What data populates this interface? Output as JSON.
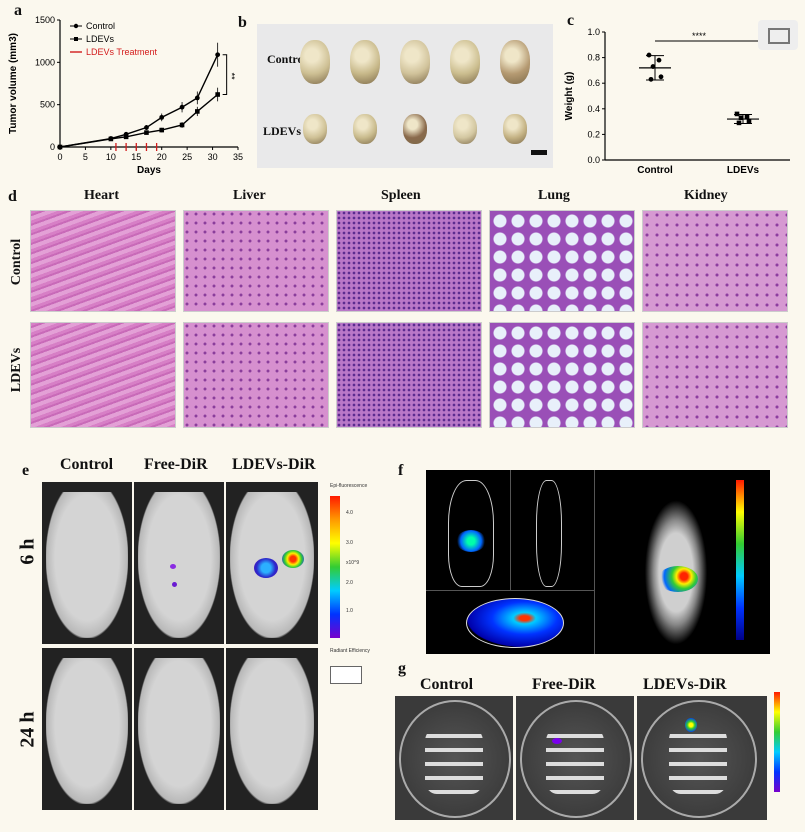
{
  "panels": {
    "a": "a",
    "b": "b",
    "c": "c",
    "d": "d",
    "e": "e",
    "f": "f",
    "g": "g"
  },
  "chart_data": [
    {
      "type": "line",
      "xlabel": "Days",
      "ylabel": "Tumor volume (mm3)",
      "xlim": [
        0,
        35
      ],
      "ylim": [
        0,
        1500
      ],
      "xticks": [
        "0",
        "5",
        "10",
        "15",
        "20",
        "25",
        "30",
        "35"
      ],
      "yticks": [
        "0",
        "500",
        "1000",
        "1500"
      ],
      "x": [
        0,
        10,
        13,
        17,
        20,
        24,
        27,
        31
      ],
      "series": [
        {
          "name": "Control",
          "values": [
            0,
            100,
            150,
            230,
            350,
            470,
            580,
            1090
          ]
        },
        {
          "name": "LDEVs",
          "values": [
            0,
            95,
            120,
            170,
            200,
            260,
            420,
            620
          ]
        }
      ],
      "legend": [
        "Control",
        "LDEVs",
        "LDEVs Treatment"
      ],
      "treatment_days": [
        11,
        13,
        15,
        17,
        19
      ],
      "significance": "**"
    },
    {
      "type": "scatter",
      "ylabel": "Weight (g)",
      "categories": [
        "Control",
        "LDEVs"
      ],
      "ylim": [
        0,
        1.0
      ],
      "yticks": [
        "0.0",
        "0.2",
        "0.4",
        "0.6",
        "0.8",
        "1.0"
      ],
      "points": [
        [
          0.82,
          0.78,
          0.73,
          0.65,
          0.63
        ],
        [
          0.36,
          0.34,
          0.33,
          0.3,
          0.29
        ]
      ],
      "means": [
        0.72,
        0.32
      ],
      "significance": "****"
    }
  ],
  "b": {
    "row1": "Control",
    "row2": "LDEVs"
  },
  "d": {
    "organs": [
      "Heart",
      "Liver",
      "Spleen",
      "Lung",
      "Kidney"
    ],
    "rows": [
      "Control",
      "LDEVs"
    ]
  },
  "e": {
    "cols": [
      "Control",
      "Free-DiR",
      "LDEVs-DiR"
    ],
    "rows": [
      "6 h",
      "24 h"
    ],
    "scale_title": "Epi-fluorescence",
    "scale_ticks": [
      "4.0",
      "3.0",
      "2.0",
      "1.0"
    ],
    "scale_unit": "x10^9",
    "scale_label": "Radiant Efficiency"
  },
  "g": {
    "cols": [
      "Control",
      "Free-DiR",
      "LDEVs-DiR"
    ]
  }
}
